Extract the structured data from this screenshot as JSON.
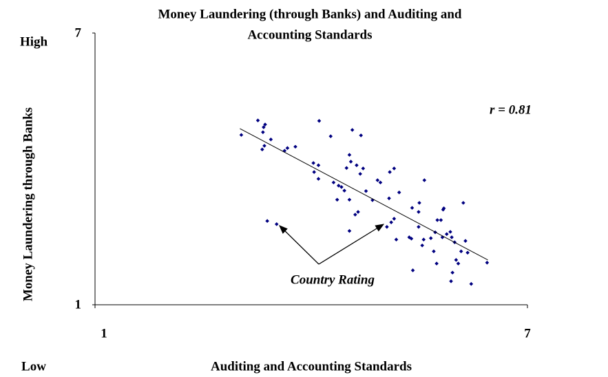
{
  "chart_data": {
    "type": "scatter",
    "title": [
      "Money Laundering (through Banks) and Auditing and",
      "Accounting Standards"
    ],
    "x_label": "Auditing and Accounting Standards",
    "y_label": "Money Laundering through Banks",
    "y_high_label": "High",
    "y_low_label": "Low",
    "annotations": [
      "r = 0.81",
      "Country Rating"
    ],
    "xlim": [
      1,
      7
    ],
    "ylim": [
      1,
      7
    ],
    "xticks": [
      1,
      7
    ],
    "yticks": [
      1,
      7
    ],
    "color": "#000080",
    "series": [
      {
        "x": [
          3.03,
          3.26,
          3.34,
          3.36,
          3.33,
          3.44,
          3.32,
          3.35,
          3.63,
          3.67,
          3.78,
          4.11,
          4.27,
          4.57,
          4.69,
          4.03,
          4.1,
          4.04,
          4.1,
          4.31,
          4.38,
          4.42,
          4.49,
          4.53,
          4.55,
          4.63,
          4.72,
          4.68,
          4.46,
          4.36,
          4.53,
          4.61,
          4.65,
          4.76,
          4.85,
          4.92,
          4.96,
          5.08,
          5.09,
          5.15,
          5.22,
          5.05,
          5.11,
          5.15,
          5.18,
          5.4,
          5.49,
          5.49,
          5.36,
          5.39,
          5.5,
          5.57,
          5.75,
          5.8,
          5.83,
          5.84,
          5.66,
          5.72,
          5.56,
          5.41,
          5.54,
          5.7,
          5.74,
          5.82,
          5.88,
          5.93,
          5.95,
          5.99,
          6.11,
          6.08,
          6.14,
          6.17,
          5.96,
          5.94,
          6.01,
          6.04,
          6.22,
          6.44,
          3.39,
          3.52,
          4.53
        ],
        "values": [
          4.75,
          5.07,
          4.92,
          4.98,
          4.81,
          4.65,
          4.43,
          4.51,
          4.4,
          4.46,
          4.49,
          5.06,
          4.72,
          4.86,
          4.74,
          4.13,
          4.08,
          3.93,
          3.78,
          3.7,
          3.63,
          3.6,
          4.02,
          4.31,
          4.16,
          4.08,
          4.01,
          3.89,
          3.52,
          3.32,
          3.32,
          2.99,
          3.05,
          3.51,
          3.31,
          3.75,
          3.7,
          3.35,
          3.93,
          4.01,
          3.48,
          2.72,
          2.82,
          2.9,
          2.44,
          3.14,
          3.05,
          2.72,
          2.49,
          2.46,
          3.25,
          3.75,
          2.87,
          2.87,
          3.1,
          3.13,
          2.47,
          2.6,
          2.44,
          1.76,
          2.31,
          2.18,
          1.91,
          2.49,
          2.56,
          2.61,
          2.49,
          2.38,
          3.25,
          2.18,
          2.41,
          2.15,
          1.71,
          1.52,
          1.99,
          1.91,
          1.46,
          1.93,
          2.85,
          2.78,
          2.63
        ]
      }
    ],
    "trendline": {
      "x": [
        3.01,
        6.45
      ],
      "y": [
        4.89,
        1.99
      ]
    }
  }
}
